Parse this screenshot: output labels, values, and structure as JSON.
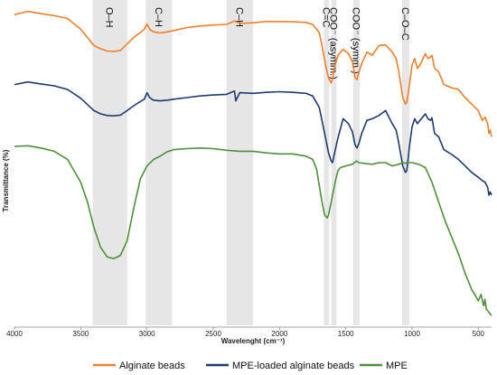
{
  "chart_data": {
    "type": "line",
    "xlabel": "Wavelenght (cm⁻¹)",
    "ylabel": "Transmittance (%)",
    "xlim": [
      4000,
      400
    ],
    "x_reversed": true,
    "x_ticks": [
      4000,
      3500,
      3000,
      2500,
      2000,
      1500,
      1000,
      500
    ],
    "y_ticks_visible": false,
    "grid": false,
    "legend_position": "bottom",
    "bands": [
      {
        "label": "O–H",
        "from": 3410,
        "to": 3150
      },
      {
        "label": "C–H",
        "from": 3010,
        "to": 2810
      },
      {
        "label": "C–H",
        "from": 2400,
        "to": 2200
      },
      {
        "label": "C=C",
        "from": 1665,
        "to": 1625
      },
      {
        "label": "COO⁻ (asymm.)",
        "from": 1610,
        "to": 1570
      },
      {
        "label": "COO⁻ (symm.)",
        "from": 1445,
        "to": 1395
      },
      {
        "label": "C–O–C",
        "from": 1075,
        "to": 1020
      }
    ],
    "series": [
      {
        "name": "Alginate beads",
        "color": "#f07f2a",
        "x": [
          4000,
          3900,
          3800,
          3700,
          3600,
          3500,
          3400,
          3350,
          3300,
          3250,
          3200,
          3150,
          3100,
          3050,
          3020,
          3000,
          2980,
          2950,
          2900,
          2850,
          2800,
          2700,
          2600,
          2500,
          2400,
          2340,
          2300,
          2200,
          2100,
          2000,
          1900,
          1800,
          1750,
          1700,
          1680,
          1650,
          1630,
          1610,
          1600,
          1590,
          1560,
          1520,
          1480,
          1450,
          1430,
          1415,
          1400,
          1380,
          1340,
          1300,
          1250,
          1200,
          1150,
          1120,
          1100,
          1070,
          1050,
          1040,
          1030,
          1020,
          1000,
          980,
          960,
          940,
          900,
          880,
          860,
          850,
          830,
          800,
          780,
          760,
          700,
          650,
          600,
          550,
          500,
          470,
          450,
          430,
          420,
          410,
          400
        ],
        "y": [
          95.5,
          96.5,
          95.8,
          95.2,
          94.3,
          91.0,
          86.0,
          85.0,
          84.3,
          84.2,
          84.5,
          86.5,
          88.5,
          90.0,
          91.0,
          92.6,
          91.0,
          90.2,
          89.9,
          90.2,
          90.6,
          91.5,
          92.0,
          92.3,
          92.5,
          93.5,
          92.8,
          93.0,
          93.4,
          93.4,
          93.3,
          93.1,
          92.5,
          90.0,
          86.0,
          79.5,
          76.0,
          74.5,
          76.0,
          78.5,
          83.0,
          84.8,
          83.5,
          81.0,
          76.2,
          75.5,
          78.0,
          80.5,
          84.0,
          83.0,
          86.0,
          86.2,
          84.0,
          82.0,
          78.0,
          70.0,
          68.0,
          68.5,
          71.0,
          74.0,
          80.0,
          82.0,
          79.0,
          80.0,
          83.5,
          82.0,
          82.5,
          83.0,
          79.0,
          78.0,
          76.0,
          74.0,
          73.0,
          72.5,
          70.0,
          68.0,
          66.0,
          63.0,
          64.0,
          62.0,
          59.0,
          60.0,
          58.0
        ]
      },
      {
        "name": "MPE-loaded alginate beads",
        "color": "#1f3a6e",
        "x": [
          4000,
          3900,
          3800,
          3700,
          3600,
          3500,
          3400,
          3350,
          3300,
          3250,
          3200,
          3150,
          3100,
          3050,
          3020,
          3000,
          2980,
          2950,
          2900,
          2850,
          2800,
          2700,
          2600,
          2500,
          2400,
          2340,
          2330,
          2300,
          2200,
          2100,
          2000,
          1900,
          1800,
          1750,
          1700,
          1680,
          1650,
          1630,
          1610,
          1600,
          1590,
          1560,
          1520,
          1480,
          1450,
          1430,
          1415,
          1400,
          1380,
          1340,
          1300,
          1250,
          1200,
          1150,
          1120,
          1100,
          1070,
          1050,
          1040,
          1030,
          1020,
          1000,
          980,
          960,
          940,
          900,
          880,
          860,
          850,
          830,
          800,
          780,
          760,
          700,
          650,
          600,
          550,
          500,
          470,
          450,
          430,
          420,
          410,
          400
        ],
        "y": [
          74.0,
          74.8,
          74.2,
          73.6,
          72.5,
          69.8,
          66.0,
          65.0,
          64.5,
          64.4,
          64.6,
          66.0,
          67.5,
          68.8,
          69.5,
          71.5,
          70.0,
          69.2,
          69.0,
          69.2,
          69.5,
          70.0,
          70.5,
          70.8,
          71.0,
          72.0,
          69.0,
          71.5,
          71.3,
          71.6,
          71.8,
          71.6,
          71.3,
          70.5,
          67.0,
          63.0,
          57.0,
          53.0,
          50.5,
          50.0,
          52.0,
          57.5,
          63.5,
          62.0,
          59.5,
          55.5,
          54.5,
          56.0,
          59.0,
          63.0,
          63.5,
          64.5,
          66.0,
          62.0,
          60.0,
          56.0,
          49.0,
          47.0,
          47.5,
          51.0,
          55.0,
          61.0,
          63.5,
          62.0,
          63.0,
          65.0,
          63.5,
          63.0,
          63.8,
          59.0,
          58.0,
          56.0,
          54.0,
          52.5,
          51.0,
          49.0,
          47.0,
          45.5,
          44.5,
          44.0,
          42.5,
          40.0,
          41.0,
          40.0
        ]
      },
      {
        "name": "MPE",
        "color": "#4e8f3a",
        "x": [
          4000,
          3900,
          3800,
          3700,
          3600,
          3500,
          3450,
          3400,
          3350,
          3300,
          3250,
          3200,
          3150,
          3100,
          3050,
          3000,
          2950,
          2900,
          2850,
          2800,
          2700,
          2600,
          2500,
          2400,
          2300,
          2200,
          2100,
          2000,
          1900,
          1800,
          1750,
          1720,
          1700,
          1680,
          1660,
          1640,
          1630,
          1620,
          1600,
          1580,
          1560,
          1540,
          1500,
          1450,
          1420,
          1400,
          1350,
          1300,
          1250,
          1200,
          1150,
          1100,
          1070,
          1050,
          1040,
          1000,
          950,
          900,
          850,
          800,
          750,
          700,
          650,
          600,
          550,
          520,
          500,
          480,
          460,
          450,
          440,
          430,
          420,
          410,
          400
        ],
        "y": [
          55.0,
          55.2,
          54.5,
          53.5,
          51.0,
          44.0,
          38.0,
          30.0,
          24.0,
          21.0,
          20.5,
          21.5,
          26.0,
          36.0,
          45.0,
          49.0,
          51.0,
          52.0,
          53.3,
          54.0,
          54.3,
          54.5,
          54.3,
          53.8,
          53.5,
          53.5,
          53.0,
          52.7,
          52.7,
          52.0,
          51.0,
          48.0,
          43.0,
          38.0,
          34.0,
          33.0,
          34.0,
          36.0,
          40.0,
          44.0,
          47.5,
          48.5,
          49.0,
          49.5,
          50.5,
          50.0,
          49.7,
          49.5,
          50.0,
          50.0,
          49.0,
          49.5,
          50.0,
          49.8,
          50.0,
          50.0,
          49.5,
          48.5,
          44.0,
          38.0,
          32.0,
          27.0,
          22.0,
          16.0,
          11.0,
          9.0,
          7.5,
          9.5,
          6.0,
          8.0,
          5.0,
          4.5,
          4.0,
          3.5,
          3.0
        ]
      }
    ]
  }
}
